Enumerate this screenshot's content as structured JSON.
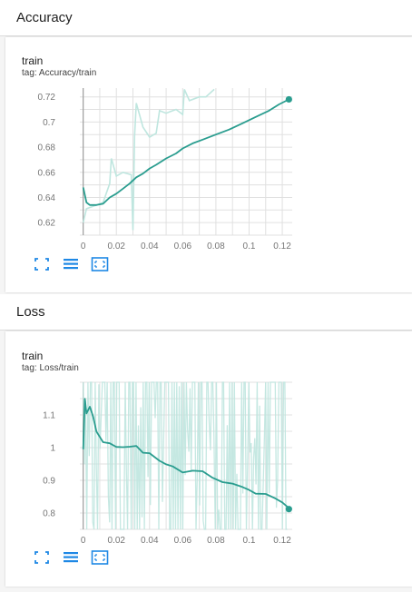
{
  "sections": [
    {
      "title": "Accuracy",
      "run_name": "train",
      "tag": "tag: Accuracy/train"
    },
    {
      "title": "Loss",
      "run_name": "train",
      "tag": "tag: Loss/train"
    }
  ],
  "icons": [
    "fullscreen-icon",
    "toggle-log-scale-icon",
    "fit-domain-icon"
  ],
  "colors": {
    "series": "#2a9d8f",
    "series_raw": "#bfe6df",
    "grid": "#e0e0e0",
    "axis": "#9e9e9e",
    "icon": "#1e88e5"
  },
  "chart_data": [
    {
      "type": "line",
      "x_ticks": [
        "0",
        "0.02",
        "0.04",
        "0.06",
        "0.08",
        "0.1",
        "0.12"
      ],
      "y_ticks": [
        "0.62",
        "0.64",
        "0.66",
        "0.68",
        "0.7",
        "0.72"
      ],
      "xlim": [
        -0.002,
        0.126
      ],
      "ylim": [
        0.61,
        0.727
      ],
      "grid": true,
      "series": [
        {
          "style": "smoothed",
          "x": [
            0,
            0.002,
            0.004,
            0.008,
            0.012,
            0.016,
            0.02,
            0.024,
            0.028,
            0.032,
            0.036,
            0.04,
            0.044,
            0.05,
            0.056,
            0.06,
            0.066,
            0.072,
            0.08,
            0.088,
            0.096,
            0.104,
            0.112,
            0.118,
            0.124
          ],
          "y": [
            0.648,
            0.636,
            0.634,
            0.634,
            0.635,
            0.64,
            0.643,
            0.647,
            0.651,
            0.656,
            0.659,
            0.663,
            0.666,
            0.671,
            0.675,
            0.679,
            0.683,
            0.686,
            0.69,
            0.694,
            0.699,
            0.704,
            0.709,
            0.714,
            0.718
          ]
        },
        {
          "style": "raw",
          "x": [
            0,
            0.002,
            0.006,
            0.012,
            0.016,
            0.017,
            0.02,
            0.024,
            0.029,
            0.03,
            0.031,
            0.032,
            0.036,
            0.04,
            0.044,
            0.046,
            0.05,
            0.052,
            0.056,
            0.06,
            0.061,
            0.064,
            0.07,
            0.074,
            0.079
          ],
          "y": [
            0.62,
            0.631,
            0.633,
            0.636,
            0.651,
            0.671,
            0.657,
            0.66,
            0.658,
            0.614,
            0.689,
            0.715,
            0.696,
            0.688,
            0.691,
            0.709,
            0.707,
            0.708,
            0.71,
            0.706,
            0.726,
            0.717,
            0.72,
            0.72,
            0.726
          ]
        }
      ]
    },
    {
      "type": "line",
      "x_ticks": [
        "0",
        "0.02",
        "0.04",
        "0.06",
        "0.08",
        "0.1",
        "0.12"
      ],
      "y_ticks": [
        "0.8",
        "0.9",
        "1",
        "1.1"
      ],
      "xlim": [
        -0.002,
        0.126
      ],
      "ylim": [
        0.75,
        1.2
      ],
      "grid": true,
      "series": [
        {
          "style": "smoothed",
          "x": [
            0,
            0.001,
            0.002,
            0.004,
            0.006,
            0.008,
            0.012,
            0.016,
            0.02,
            0.024,
            0.028,
            0.032,
            0.036,
            0.04,
            0.046,
            0.05,
            0.054,
            0.06,
            0.066,
            0.072,
            0.078,
            0.084,
            0.09,
            0.096,
            0.1,
            0.104,
            0.11,
            0.116,
            0.12,
            0.124
          ],
          "y": [
            0.995,
            1.15,
            1.1,
            1.13,
            1.095,
            1.05,
            1.02,
            1.01,
            1.0,
            1.005,
            1.0,
            1.01,
            0.985,
            0.98,
            0.965,
            0.95,
            0.945,
            0.93,
            0.93,
            0.925,
            0.91,
            0.9,
            0.89,
            0.88,
            0.87,
            0.865,
            0.855,
            0.845,
            0.83,
            0.812
          ]
        }
      ]
    }
  ]
}
